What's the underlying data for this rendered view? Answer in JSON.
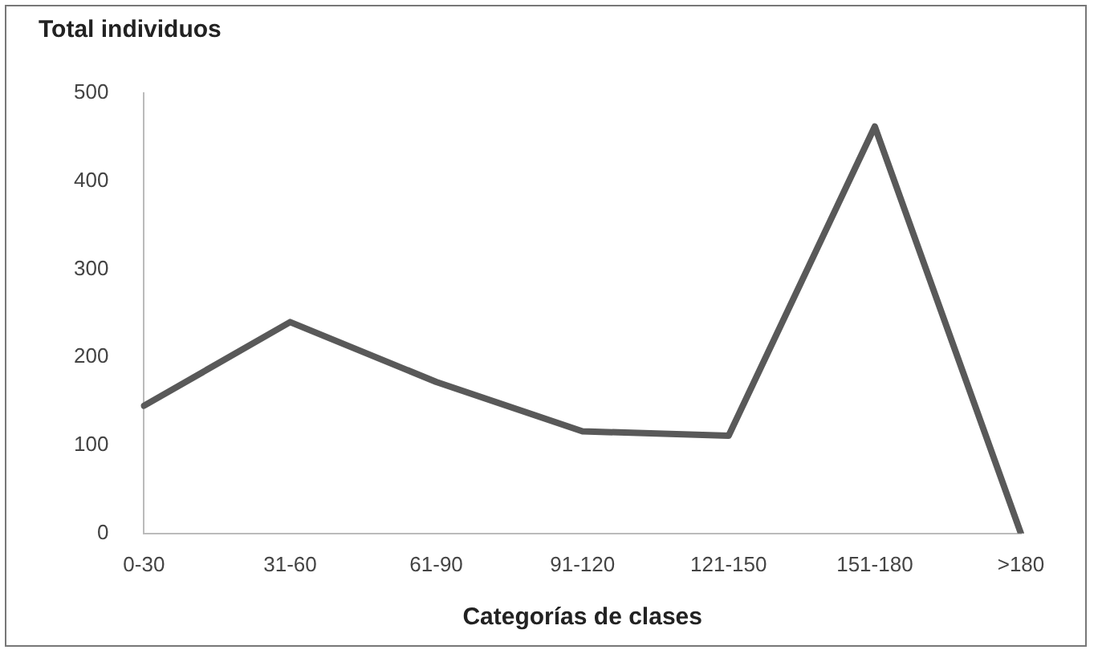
{
  "chart_data": {
    "type": "line",
    "title": "Total individuos",
    "xlabel": "Categorías de clases",
    "categories": [
      "0-30",
      "31-60",
      "61-90",
      "91-120",
      "121-150",
      "151-180",
      ">180"
    ],
    "series": [
      {
        "color": "#595959",
        "values": [
          145,
          240,
          172,
          116,
          111,
          462,
          0
        ]
      }
    ],
    "ylim": [
      0,
      500
    ],
    "yticks": [
      0,
      100,
      200,
      300,
      400,
      500
    ],
    "grid": false,
    "legend": false,
    "marker": "none",
    "line_style": "solid"
  }
}
